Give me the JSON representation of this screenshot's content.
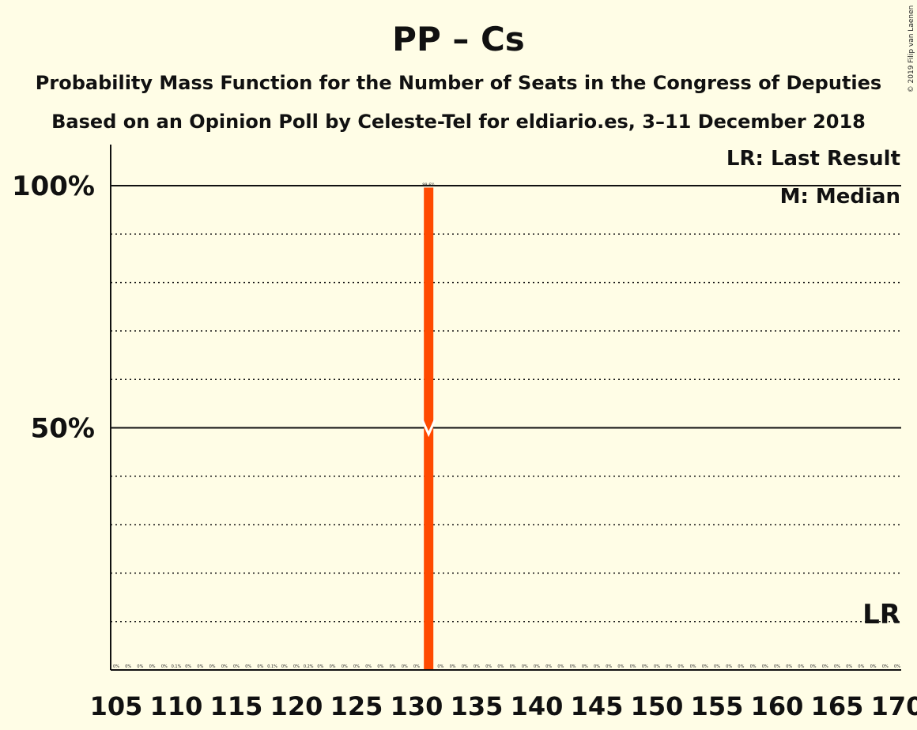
{
  "chart_data": {
    "type": "bar",
    "title": "PP – Cs",
    "subtitle_1": "Probability Mass Function for the Number of Seats in the Congress of Deputies",
    "subtitle_2": "Based on an Opinion Poll by Celeste-Tel for eldiario.es, 3–11 December 2018",
    "copyright": "© 2019 Filip van Laenen",
    "legend": {
      "last_result": "LR: Last Result",
      "median": "M: Median",
      "placement": "top-right"
    },
    "lr_marker_label": "LR",
    "y_ticks": [
      {
        "value": 1.0,
        "label": "100%"
      },
      {
        "value": 0.5,
        "label": "50%"
      }
    ],
    "ylim": [
      0,
      1
    ],
    "grid": "dotted every 10%",
    "x_range": [
      105,
      170
    ],
    "x_tick_labels": [
      "105",
      "110",
      "115",
      "120",
      "125",
      "130",
      "135",
      "140",
      "145",
      "150",
      "155",
      "160",
      "165",
      "170"
    ],
    "median_seat": 131,
    "last_result_seat": 170,
    "bar_color": "#FF4A00",
    "x": [
      105,
      106,
      107,
      108,
      109,
      110,
      111,
      112,
      113,
      114,
      115,
      116,
      117,
      118,
      119,
      120,
      121,
      122,
      123,
      124,
      125,
      126,
      127,
      128,
      129,
      130,
      131,
      132,
      133,
      134,
      135,
      136,
      137,
      138,
      139,
      140,
      141,
      142,
      143,
      144,
      145,
      146,
      147,
      148,
      149,
      150,
      151,
      152,
      153,
      154,
      155,
      156,
      157,
      158,
      159,
      160,
      161,
      162,
      163,
      164,
      165,
      166,
      167,
      168,
      169,
      170
    ],
    "values": [
      0,
      0,
      0,
      0,
      0,
      0.001,
      0,
      0,
      0,
      0,
      0,
      0,
      0,
      0.001,
      0,
      0,
      0.002,
      0,
      0,
      0,
      0,
      0,
      0,
      0,
      0,
      0,
      0.996,
      0,
      0,
      0,
      0,
      0,
      0,
      0,
      0,
      0,
      0,
      0,
      0,
      0,
      0,
      0,
      0,
      0,
      0,
      0,
      0,
      0,
      0,
      0,
      0,
      0,
      0,
      0,
      0,
      0,
      0,
      0,
      0,
      0,
      0,
      0,
      0,
      0,
      0,
      0
    ],
    "value_labels": [
      "0%",
      "0%",
      "0%",
      "0%",
      "0%",
      "0.1%",
      "0%",
      "0%",
      "0%",
      "0%",
      "0%",
      "0%",
      "0%",
      "0.1%",
      "0%",
      "0%",
      "0.2%",
      "0%",
      "0%",
      "0%",
      "0%",
      "0%",
      "0%",
      "0%",
      "0%",
      "0%",
      "99.6%",
      "0%",
      "0%",
      "0%",
      "0%",
      "0%",
      "0%",
      "0%",
      "0%",
      "0%",
      "0%",
      "0%",
      "0%",
      "0%",
      "0%",
      "0%",
      "0%",
      "0%",
      "0%",
      "0%",
      "0%",
      "0%",
      "0%",
      "0%",
      "0%",
      "0%",
      "0%",
      "0%",
      "0%",
      "0%",
      "0%",
      "0%",
      "0%",
      "0%",
      "0%",
      "0%",
      "0%",
      "0%",
      "0%",
      "0%"
    ]
  }
}
